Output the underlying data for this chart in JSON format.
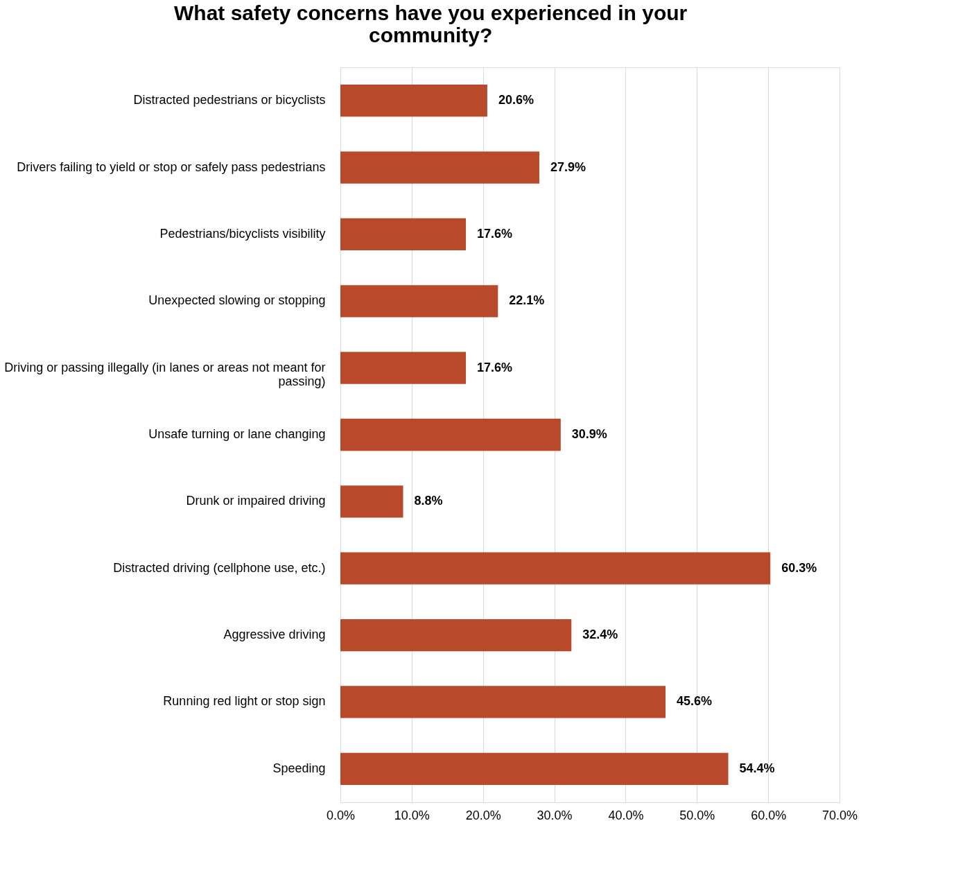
{
  "chart_data": {
    "type": "bar",
    "orientation": "horizontal",
    "title": "What safety concerns have you experienced in your community?",
    "categories": [
      "Distracted pedestrians or bicyclists",
      "Drivers failing to yield or stop or safely pass pedestrians",
      "Pedestrians/bicyclists visibility",
      "Unexpected slowing or stopping",
      "Driving or passing illegally (in lanes or areas not meant for passing)",
      "Unsafe turning or lane changing",
      "Drunk or impaired driving",
      "Distracted driving (cellphone use, etc.)",
      "Aggressive driving",
      "Running red light or stop sign",
      "Speeding"
    ],
    "values": [
      20.6,
      27.9,
      17.6,
      22.1,
      17.6,
      30.9,
      8.8,
      60.3,
      32.4,
      45.6,
      54.4
    ],
    "value_labels": [
      "20.6%",
      "27.9%",
      "17.6%",
      "22.1%",
      "17.6%",
      "30.9%",
      "8.8%",
      "60.3%",
      "32.4%",
      "45.6%",
      "54.4%"
    ],
    "color": "#b8492b",
    "xlim": [
      0,
      70
    ],
    "xticks": [
      {
        "value": 0,
        "label": "0.0%"
      },
      {
        "value": 10,
        "label": "10.0%"
      },
      {
        "value": 20,
        "label": "20.0%"
      },
      {
        "value": 30,
        "label": "30.0%"
      },
      {
        "value": 40,
        "label": "40.0%"
      },
      {
        "value": 50,
        "label": "50.0%"
      },
      {
        "value": 60,
        "label": "60.0%"
      },
      {
        "value": 70,
        "label": "70.0%"
      }
    ],
    "grid": "x"
  }
}
